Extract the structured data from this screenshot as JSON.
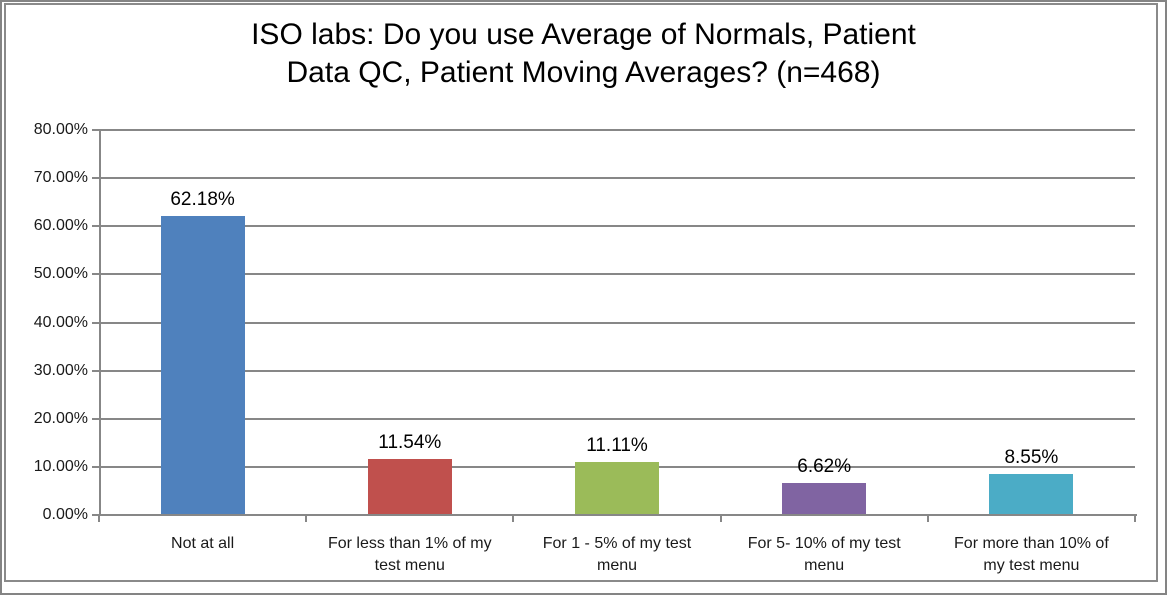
{
  "chart_data": {
    "type": "bar",
    "title": "ISO labs: Do you use Average of Normals, Patient Data QC, Patient Moving Averages? (n=468)",
    "title_lines": [
      "ISO labs: Do you use Average of Normals, Patient",
      "Data QC, Patient Moving Averages? (n=468)"
    ],
    "categories": [
      "Not at all",
      "For less than 1% of my test menu",
      "For 1 - 5% of my test menu",
      "For 5- 10% of my test menu",
      "For more than 10% of my test menu"
    ],
    "category_label_lines": [
      [
        "Not at all"
      ],
      [
        "For less than 1% of my",
        "test menu"
      ],
      [
        "For 1 - 5% of my test",
        "menu"
      ],
      [
        "For 5- 10% of my test",
        "menu"
      ],
      [
        "For more than 10% of",
        "my test menu"
      ]
    ],
    "values": [
      62.18,
      11.54,
      11.11,
      6.62,
      8.55
    ],
    "data_labels": [
      "62.18%",
      "11.54%",
      "11.11%",
      "6.62%",
      "8.55%"
    ],
    "bar_colors": [
      "#4F81BD",
      "#C0504D",
      "#9BBB59",
      "#8064A2",
      "#4BACC6"
    ],
    "ylim": [
      0,
      80
    ],
    "ytick_step": 10,
    "ytick_labels": [
      "0.00%",
      "10.00%",
      "20.00%",
      "30.00%",
      "40.00%",
      "50.00%",
      "60.00%",
      "70.00%",
      "80.00%"
    ],
    "xlabel": "",
    "ylabel": "",
    "grid": true,
    "legend_position": "none"
  },
  "styles": {
    "grid_color": "#878787",
    "outer_border_color": "#848484",
    "chart_border_color": "#8A8A8A",
    "background": "#FFFFFF",
    "text_color": "#000000"
  }
}
